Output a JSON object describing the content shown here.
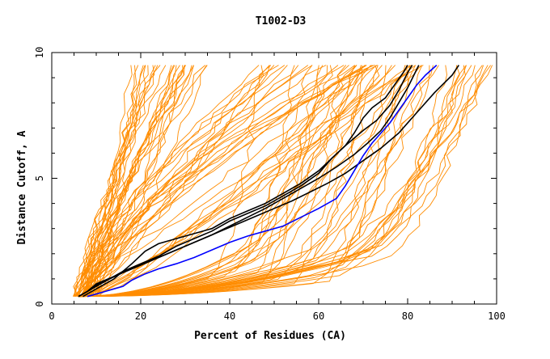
{
  "chart_data": {
    "type": "line",
    "title": "T1002-D3",
    "xlabel": "Percent of Residues (CA)",
    "ylabel": "Distance Cutoff, A",
    "xlim": [
      0,
      100
    ],
    "ylim": [
      0,
      10
    ],
    "x_ticks": [
      0,
      20,
      40,
      60,
      80,
      100
    ],
    "y_ticks": [
      0,
      5,
      10
    ],
    "grid": false,
    "legend": "none",
    "colors": {
      "background_models": "#ff8c00",
      "highlight_black": "#000000",
      "highlight_blue": "#0000ff",
      "axes": "#000000"
    },
    "highlighted_series": [
      {
        "color": "#000000",
        "x": [
          6,
          8,
          10,
          14,
          18,
          22,
          26,
          30,
          34,
          38,
          42,
          46,
          50,
          54,
          58,
          62,
          66,
          70,
          74,
          78,
          82,
          86,
          90,
          91.5
        ],
        "y": [
          0.3,
          0.5,
          0.8,
          1.1,
          1.4,
          1.7,
          2.0,
          2.3,
          2.6,
          2.9,
          3.2,
          3.5,
          3.8,
          4.1,
          4.45,
          4.8,
          5.2,
          5.7,
          6.2,
          6.8,
          7.6,
          8.4,
          9.1,
          9.5
        ]
      },
      {
        "color": "#000000",
        "x": [
          6,
          9,
          12,
          16,
          20,
          24,
          28,
          32,
          36,
          40,
          44,
          48,
          52,
          56,
          60,
          63,
          66,
          70,
          73,
          76,
          78,
          80,
          81
        ],
        "y": [
          0.3,
          0.6,
          0.9,
          1.3,
          1.6,
          1.9,
          2.3,
          2.6,
          2.9,
          3.3,
          3.6,
          3.9,
          4.3,
          4.7,
          5.2,
          5.8,
          6.3,
          6.9,
          7.3,
          7.9,
          8.5,
          9.2,
          9.5
        ]
      },
      {
        "color": "#000000",
        "x": [
          7,
          10,
          14,
          18,
          21,
          24,
          28,
          32,
          36,
          38,
          40,
          44,
          48,
          52,
          56,
          60,
          63,
          66,
          68,
          70,
          72,
          75,
          77,
          79,
          80
        ],
        "y": [
          0.3,
          0.6,
          1.0,
          1.6,
          2.1,
          2.4,
          2.6,
          2.8,
          3.0,
          3.2,
          3.4,
          3.7,
          4.0,
          4.4,
          4.8,
          5.3,
          5.8,
          6.3,
          6.8,
          7.4,
          7.8,
          8.2,
          8.7,
          9.2,
          9.5
        ]
      },
      {
        "color": "#000000",
        "x": [
          6,
          8,
          10,
          13,
          16,
          20,
          24,
          28,
          32,
          36,
          40,
          44,
          48,
          52,
          56,
          60,
          64,
          68,
          71,
          74,
          76,
          78,
          80,
          82.5
        ],
        "y": [
          0.3,
          0.5,
          0.75,
          1.0,
          1.25,
          1.55,
          1.85,
          2.15,
          2.45,
          2.75,
          3.1,
          3.45,
          3.8,
          4.2,
          4.6,
          5.0,
          5.45,
          5.95,
          6.4,
          6.9,
          7.4,
          8.0,
          8.6,
          9.5
        ]
      },
      {
        "color": "#0000ff",
        "x": [
          8,
          10,
          13,
          16,
          18,
          21,
          24,
          28,
          32,
          36,
          40,
          44,
          48,
          52,
          56,
          60,
          64,
          66,
          68,
          70,
          72,
          74,
          76,
          78,
          80,
          82,
          84,
          86.5
        ],
        "y": [
          0.3,
          0.4,
          0.55,
          0.7,
          0.95,
          1.2,
          1.4,
          1.6,
          1.85,
          2.15,
          2.45,
          2.7,
          2.9,
          3.1,
          3.45,
          3.8,
          4.2,
          4.7,
          5.3,
          5.9,
          6.4,
          6.8,
          7.2,
          7.7,
          8.2,
          8.7,
          9.1,
          9.5
        ]
      }
    ]
  }
}
